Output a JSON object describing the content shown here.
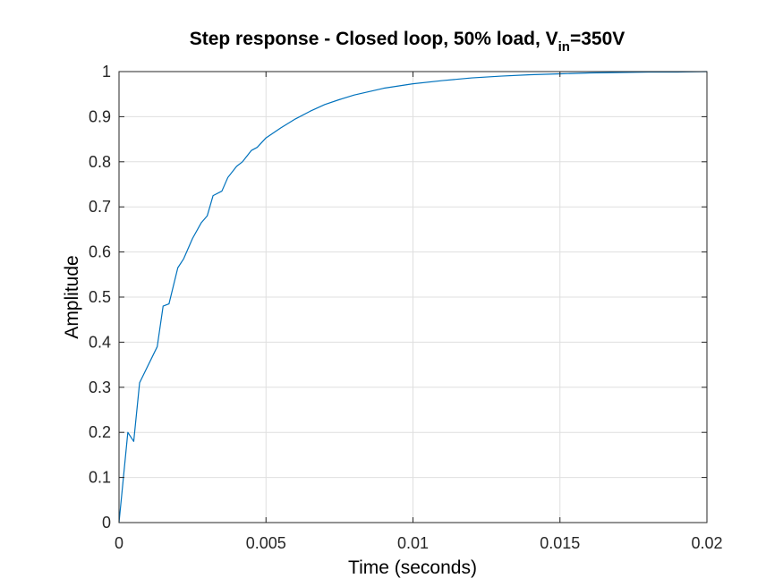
{
  "chart_data": {
    "type": "line",
    "title": "Step response - Closed loop, 50% load, V",
    "title_subscript": "in",
    "title_suffix": "=350V",
    "xlabel": "Time (seconds)",
    "ylabel": "Amplitude",
    "xlim": [
      0,
      0.02
    ],
    "ylim": [
      0,
      1
    ],
    "xticks": [
      0,
      0.005,
      0.01,
      0.015,
      0.02
    ],
    "xtick_labels": [
      "0",
      "0.005",
      "0.01",
      "0.015",
      "0.02"
    ],
    "yticks": [
      0,
      0.1,
      0.2,
      0.3,
      0.4,
      0.5,
      0.6,
      0.7,
      0.8,
      0.9,
      1
    ],
    "ytick_labels": [
      "0",
      "0.1",
      "0.2",
      "0.3",
      "0.4",
      "0.5",
      "0.6",
      "0.7",
      "0.8",
      "0.9",
      "1"
    ],
    "grid": true,
    "series": [
      {
        "color": "#0072BD",
        "x": [
          0,
          0.0003,
          0.0005,
          0.0007,
          0.0013,
          0.0015,
          0.0017,
          0.002,
          0.0022,
          0.0025,
          0.0028,
          0.003,
          0.0032,
          0.0035,
          0.0037,
          0.004,
          0.0042,
          0.0045,
          0.0047,
          0.005,
          0.0055,
          0.006,
          0.0065,
          0.007,
          0.0075,
          0.008,
          0.009,
          0.01,
          0.011,
          0.012,
          0.013,
          0.014,
          0.015,
          0.016,
          0.017,
          0.018,
          0.019,
          0.02
        ],
        "y": [
          0,
          0.2,
          0.18,
          0.31,
          0.39,
          0.48,
          0.485,
          0.565,
          0.585,
          0.63,
          0.665,
          0.68,
          0.725,
          0.735,
          0.765,
          0.79,
          0.8,
          0.825,
          0.832,
          0.853,
          0.875,
          0.895,
          0.912,
          0.927,
          0.938,
          0.948,
          0.963,
          0.973,
          0.98,
          0.986,
          0.99,
          0.993,
          0.995,
          0.997,
          0.998,
          0.999,
          0.999,
          1.0
        ]
      }
    ],
    "reference_line": {
      "y": 1,
      "style": "dotted",
      "color": "#000000"
    }
  }
}
